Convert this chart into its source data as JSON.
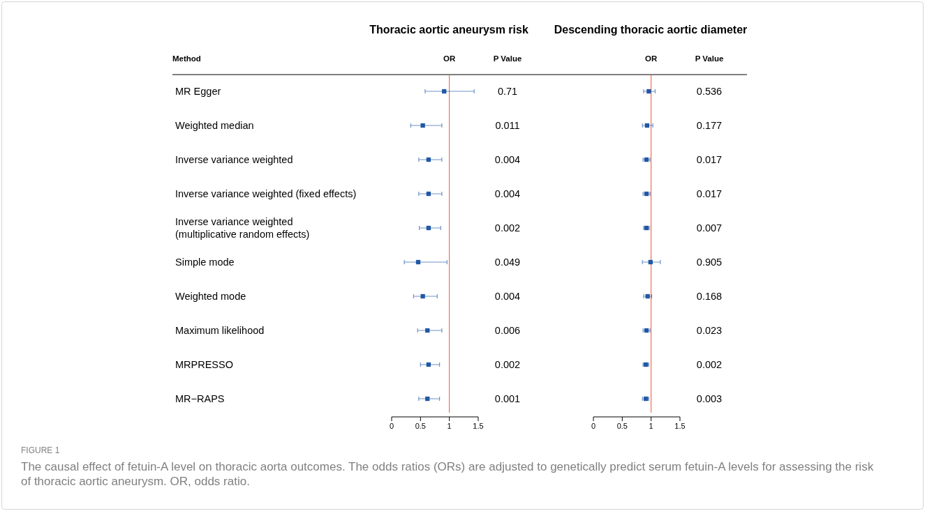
{
  "chart_data": [
    {
      "type": "scatter",
      "orientation": "horizontal",
      "title": "Thoracic aortic aneurysm risk",
      "ylabel": "Method",
      "xlabel": "OR",
      "marker": "square",
      "color": "#2158a6",
      "categories": [
        "MR Egger",
        "Weighted median",
        "Inverse variance weighted",
        "Inverse variance weighted (fixed effects)",
        "Inverse variance weighted\n(multiplicative random effects)",
        "Simple mode",
        "Weighted mode",
        "Maximum likelihood",
        "MRPRESSO",
        "MR−RAPS"
      ],
      "values": [
        0.91,
        0.54,
        0.64,
        0.64,
        0.64,
        0.46,
        0.54,
        0.62,
        0.64,
        0.62
      ],
      "errors": [
        [
          0.58,
          1.43
        ],
        [
          0.33,
          0.87
        ],
        [
          0.47,
          0.87
        ],
        [
          0.47,
          0.87
        ],
        [
          0.48,
          0.85
        ],
        [
          0.22,
          0.96
        ],
        [
          0.38,
          0.79
        ],
        [
          0.45,
          0.87
        ],
        [
          0.5,
          0.83
        ],
        [
          0.47,
          0.83
        ]
      ],
      "xlim": [
        0,
        1.5
      ],
      "xticks": [
        0,
        0.5,
        1,
        1.5
      ],
      "ref_lines": [
        {
          "axis": "x",
          "value": 1,
          "color": "#e8553a"
        }
      ],
      "annotations": [
        "P Value",
        "0.71",
        "0.011",
        "0.004",
        "0.004",
        "0.002",
        "0.049",
        "0.004",
        "0.006",
        "0.002",
        "0.001",
        "FIGURE 1",
        "The causal effect of fetuin-A level on thoracic aorta outcomes. The odds ratios (ORs) are adjusted to genetically predict serum fetuin-A levels for assessing the risk of thoracic aortic aneurysm. OR, odds ratio."
      ]
    },
    {
      "type": "scatter",
      "orientation": "horizontal",
      "title": "Descending thoracic aortic diameter",
      "xlabel": "OR",
      "marker": "square",
      "tick_labels": "x",
      "color": "#2158a6",
      "values": [
        0.96,
        0.93,
        0.92,
        0.92,
        0.92,
        0.99,
        0.94,
        0.92,
        0.91,
        0.91
      ],
      "errors": [
        [
          0.87,
          1.07
        ],
        [
          0.85,
          1.03
        ],
        [
          0.86,
          0.98
        ],
        [
          0.86,
          0.98
        ],
        [
          0.87,
          0.97
        ],
        [
          0.85,
          1.16
        ],
        [
          0.87,
          1.01
        ],
        [
          0.86,
          0.98
        ],
        [
          0.86,
          0.96
        ],
        [
          0.85,
          0.96
        ]
      ],
      "xlim": [
        0,
        1.5
      ],
      "xticks": [
        0,
        0.5,
        1,
        1.5
      ],
      "ref_lines": [
        {
          "axis": "x",
          "value": 1,
          "color": "#e8553a"
        }
      ],
      "annotations": [
        "P Value",
        "0.536",
        "0.177",
        "0.017",
        "0.017",
        "0.007",
        "0.905",
        "0.168",
        "0.023",
        "0.002",
        "0.003"
      ]
    }
  ]
}
